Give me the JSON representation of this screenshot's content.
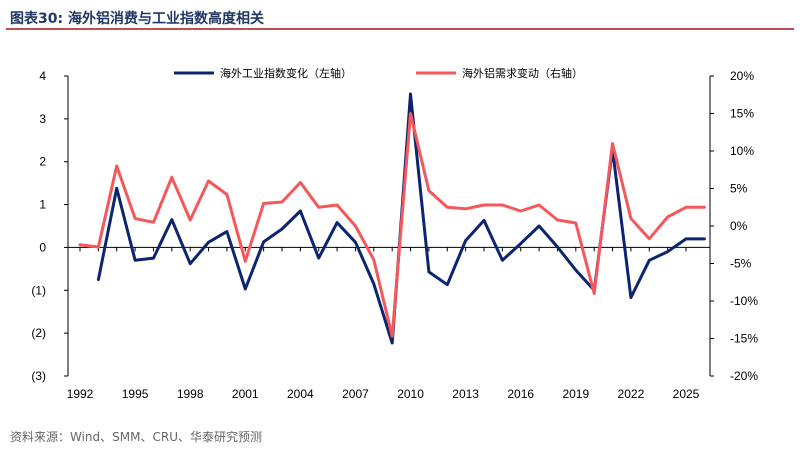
{
  "header": {
    "title": "图表30:  海外铝消费与工业指数高度相关"
  },
  "footer": {
    "source": "资料来源：Wind、SMM、CRU、华泰研究预测"
  },
  "chart_data": {
    "type": "line",
    "title": "",
    "xlabel": "",
    "ylabel": "",
    "x_ticks": [
      "1992",
      "1995",
      "1998",
      "2001",
      "2004",
      "2007",
      "2010",
      "2013",
      "2016",
      "2019",
      "2022",
      "2025"
    ],
    "x_range": [
      1992,
      2025
    ],
    "left_axis": {
      "ylim": [
        -3,
        4
      ],
      "tick_values": [
        4,
        3,
        2,
        1,
        0,
        -1,
        -2,
        -3
      ],
      "tick_labels": [
        "4",
        "3",
        "2",
        "1",
        "0",
        "(1)",
        "(2)",
        "(3)"
      ]
    },
    "right_axis": {
      "ylim": [
        -20,
        20
      ],
      "tick_values": [
        20,
        15,
        10,
        5,
        0,
        -5,
        -10,
        -15,
        -20
      ],
      "tick_labels": [
        "20%",
        "15%",
        "10%",
        "5%",
        "0%",
        "-5%",
        "-10%",
        "-15%",
        "-20%"
      ]
    },
    "legend_position": "top",
    "series": [
      {
        "name": "海外工业指数变化（左轴）",
        "axis": "left",
        "color": "#0d2470",
        "x": [
          1993,
          1994,
          1995,
          1996,
          1997,
          1998,
          1999,
          2000,
          2001,
          2002,
          2003,
          2004,
          2005,
          2006,
          2007,
          2008,
          2009,
          2010,
          2011,
          2012,
          2013,
          2014,
          2015,
          2016,
          2017,
          2018,
          2019,
          2020,
          2021,
          2022,
          2023,
          2024,
          2025,
          2026
        ],
        "values": [
          -0.75,
          1.38,
          -0.3,
          -0.25,
          0.65,
          -0.38,
          0.12,
          0.37,
          -0.97,
          0.13,
          0.43,
          0.85,
          -0.25,
          0.58,
          0.12,
          -0.85,
          -2.23,
          3.58,
          -0.57,
          -0.87,
          0.16,
          0.63,
          -0.3,
          0.09,
          0.5,
          0.01,
          -0.53,
          -1.0,
          2.3,
          -1.17,
          -0.3,
          -0.1,
          0.2,
          0.2
        ]
      },
      {
        "name": "海外铝需求变动（右轴）",
        "axis": "right",
        "color": "#f4585a",
        "x": [
          1992,
          1993,
          1994,
          1995,
          1996,
          1997,
          1998,
          1999,
          2000,
          2001,
          2002,
          2003,
          2004,
          2005,
          2006,
          2007,
          2008,
          2009,
          2010,
          2011,
          2012,
          2013,
          2014,
          2015,
          2016,
          2017,
          2018,
          2019,
          2020,
          2021,
          2022,
          2023,
          2024,
          2025,
          2026
        ],
        "values": [
          -2.5,
          -2.8,
          8.0,
          1.0,
          0.5,
          6.5,
          0.8,
          6.0,
          4.2,
          -4.7,
          3.0,
          3.2,
          5.8,
          2.5,
          2.8,
          0.0,
          -4.5,
          -14.7,
          15.0,
          4.7,
          2.5,
          2.3,
          2.8,
          2.8,
          2.0,
          2.8,
          0.8,
          0.4,
          -9.0,
          11.0,
          1.0,
          -1.7,
          1.2,
          2.5,
          2.5
        ]
      }
    ]
  }
}
